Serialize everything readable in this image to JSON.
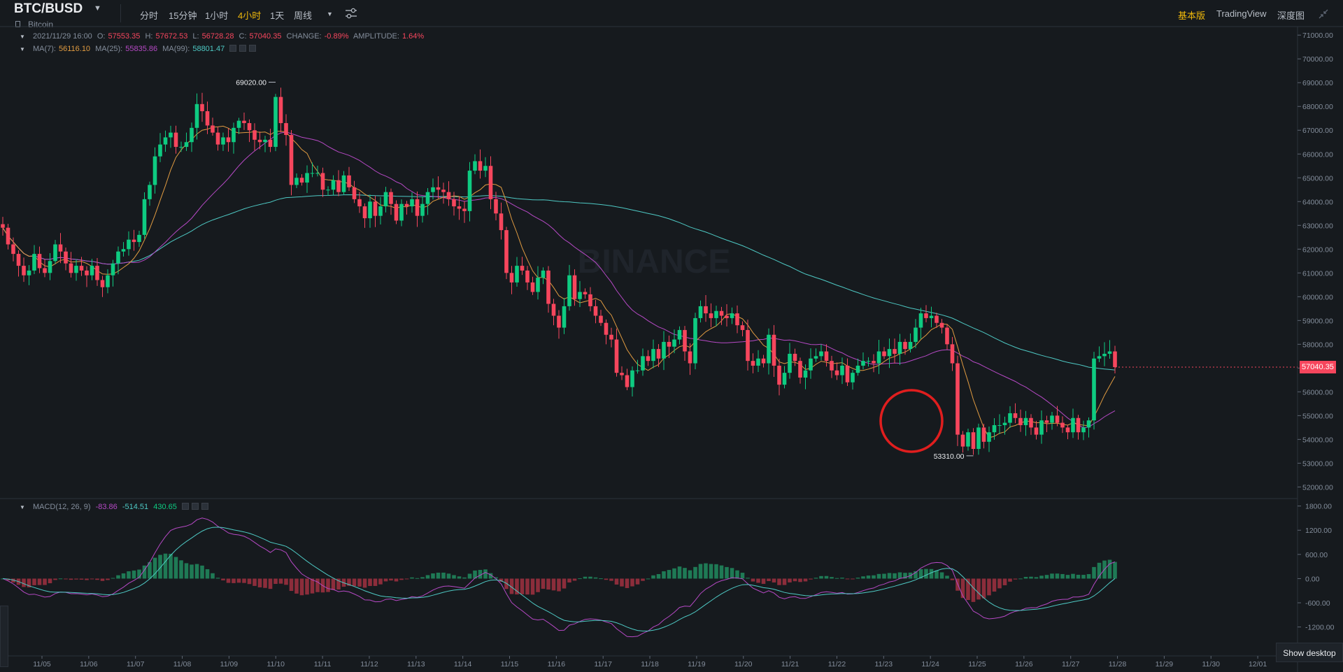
{
  "header": {
    "pair": "BTC/BUSD",
    "subtitle": "Bitcoin",
    "timeframes": [
      "分时",
      "15分钟",
      "1小时",
      "4小时",
      "1天",
      "周线"
    ],
    "active_timeframe": "4小时",
    "right_tabs": [
      "基本版",
      "TradingView",
      "深度图"
    ],
    "active_right_tab": "基本版"
  },
  "ohlc": {
    "time": "2021/11/29 16:00",
    "open_label": "O:",
    "open": "57553.35",
    "high_label": "H:",
    "high": "57672.53",
    "low_label": "L:",
    "low": "56728.28",
    "close_label": "C:",
    "close": "57040.35",
    "change_label": "CHANGE:",
    "change": "-0.89%",
    "amplitude_label": "AMPLITUDE:",
    "amplitude": "1.64%"
  },
  "ma": {
    "ma7_label": "MA(7):",
    "ma7": "56116.10",
    "ma25_label": "MA(25):",
    "ma25": "55835.86",
    "ma99_label": "MA(99):",
    "ma99": "58801.47"
  },
  "macd": {
    "label": "MACD(12, 26, 9)",
    "v1": "-83.86",
    "v2": "-514.51",
    "v3": "430.65"
  },
  "current_price": "57040.35",
  "watermark": "BINANCE",
  "show_desktop": "Show desktop",
  "colors": {
    "up": "#0ecb81",
    "down": "#f6465d",
    "accent": "#f0b90b",
    "ma7": "#e09b41",
    "ma25": "#b649c5",
    "ma99": "#4ec9c4",
    "macd_dif": "#b649c5",
    "macd_dea": "#4ec9c4",
    "annotation": "#e01e1e"
  },
  "chart_data": {
    "type": "candlestick",
    "interval": "4小时",
    "price_axis": [
      "71000.00",
      "70000.00",
      "69000.00",
      "68000.00",
      "67000.00",
      "66000.00",
      "65000.00",
      "64000.00",
      "63000.00",
      "62000.00",
      "61000.00",
      "60000.00",
      "59000.00",
      "58000.00",
      "57000.00",
      "56000.00",
      "55000.00",
      "54000.00",
      "53000.00",
      "52000.00"
    ],
    "price_ylim": [
      51600,
      71300
    ],
    "macd_axis": [
      "1800.00",
      "1200.00",
      "600.00",
      "0.00",
      "-600.00",
      "-1200.00"
    ],
    "macd_ylim": [
      -1900,
      1950
    ],
    "date_axis": [
      "11/05",
      "11/06",
      "11/07",
      "11/08",
      "11/09",
      "11/10",
      "11/11",
      "11/12",
      "11/13",
      "11/14",
      "11/15",
      "11/16",
      "11/17",
      "11/18",
      "11/19",
      "11/20",
      "11/21",
      "11/22",
      "11/23",
      "11/24",
      "11/25",
      "11/26",
      "11/27",
      "11/28",
      "11/29",
      "11/30",
      "12/01"
    ],
    "max_label": "69020.00",
    "min_label": "53310.00",
    "close": [
      62900,
      62200,
      61800,
      61300,
      60900,
      61100,
      61800,
      61200,
      61000,
      61500,
      62200,
      61900,
      61400,
      61000,
      61300,
      61100,
      60900,
      61300,
      60700,
      60400,
      60900,
      61400,
      61900,
      62000,
      62400,
      62300,
      62600,
      64100,
      64700,
      65900,
      66400,
      66700,
      66900,
      66300,
      66300,
      66500,
      67100,
      68100,
      67800,
      67200,
      66900,
      66400,
      66700,
      66500,
      67100,
      67400,
      67300,
      67000,
      66600,
      66500,
      66600,
      66300,
      68400,
      67300,
      66800,
      64700,
      65000,
      64800,
      65200,
      65200,
      65200,
      64500,
      64500,
      64900,
      64400,
      65100,
      64600,
      64100,
      63800,
      63300,
      64000,
      63400,
      63800,
      64400,
      63900,
      63200,
      63900,
      63800,
      64100,
      63400,
      63900,
      64400,
      64600,
      64500,
      64400,
      64100,
      63800,
      63700,
      63600,
      65300,
      65700,
      65300,
      65500,
      64100,
      63500,
      62800,
      61000,
      60600,
      61300,
      61100,
      60600,
      60200,
      60800,
      61100,
      59700,
      59200,
      58700,
      59600,
      60900,
      59900,
      60200,
      60100,
      59600,
      59200,
      58900,
      58400,
      58200,
      56800,
      56700,
      56200,
      56900,
      56900,
      57500,
      57300,
      57800,
      57400,
      58100,
      57900,
      58200,
      58600,
      57700,
      57200,
      59100,
      59600,
      59300,
      59100,
      59400,
      59200,
      59100,
      59300,
      58800,
      58600,
      57300,
      57100,
      57400,
      57200,
      58400,
      57100,
      56300,
      56800,
      57600,
      57300,
      56600,
      56900,
      57400,
      57500,
      57700,
      57300,
      56900,
      56700,
      57100,
      56400,
      56800,
      57100,
      57300,
      57300,
      57200,
      57700,
      57500,
      57800,
      57600,
      58100,
      57800,
      58100,
      58700,
      59300,
      59100,
      59200,
      58900,
      58700,
      58000,
      57200,
      54200,
      53700,
      54300,
      53600,
      54500,
      53900,
      54300,
      54600,
      54600,
      54700,
      55100,
      54900,
      54600,
      54900,
      54500,
      54200,
      54800,
      54700,
      55000,
      54700,
      54500,
      54300,
      54900,
      54300,
      54500,
      54800,
      57400,
      57500,
      57600,
      57700,
      57040
    ],
    "bars": 225,
    "annotation": "red circle around 11/23–11/24 low"
  }
}
